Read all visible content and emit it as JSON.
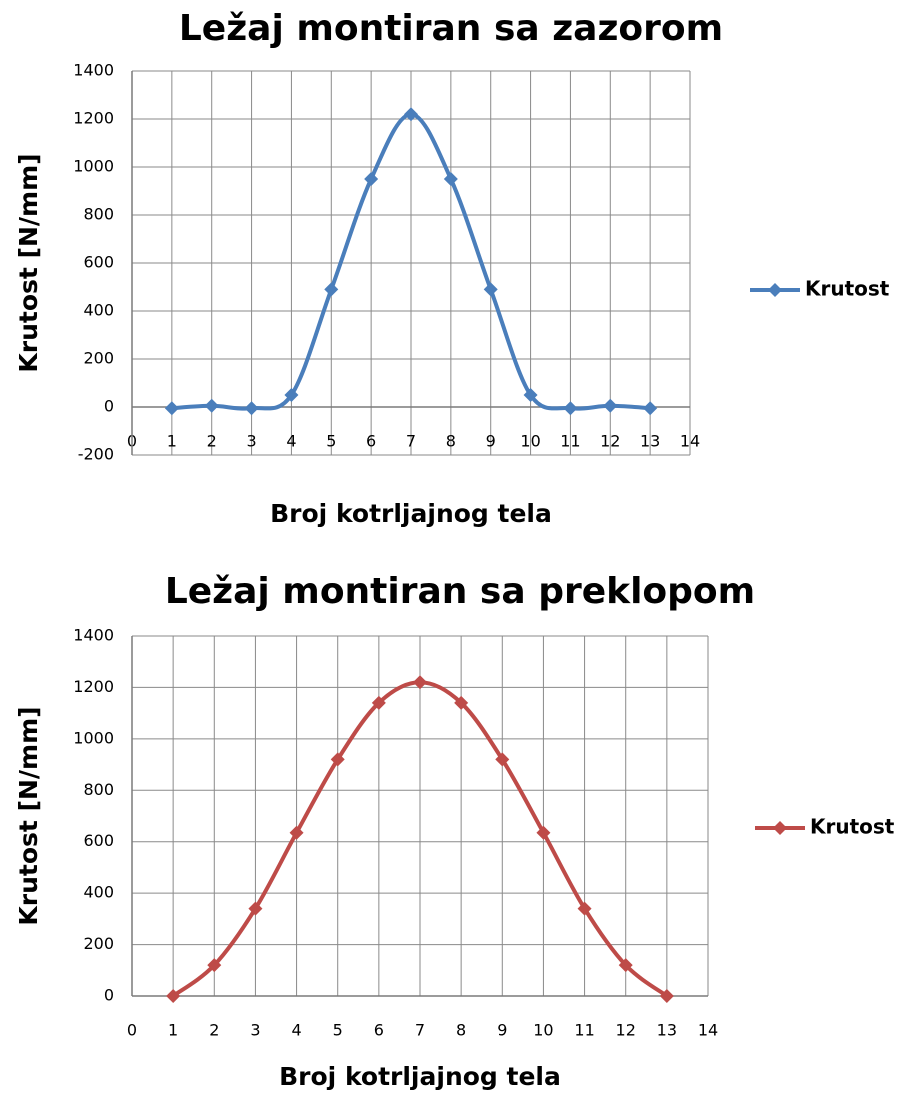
{
  "chart_data": [
    {
      "type": "line",
      "title": "Ležaj montiran sa zazorom",
      "x_label": "Broj kotrljajnog tela",
      "y_label": "Krutost [N/mm]",
      "x": [
        1,
        2,
        3,
        4,
        5,
        6,
        7,
        8,
        9,
        10,
        11,
        12,
        13
      ],
      "series": [
        {
          "name": "Krutost",
          "color": "#4a7ebb",
          "values": [
            -5,
            5,
            -5,
            50,
            490,
            950,
            1220,
            950,
            490,
            50,
            -5,
            5,
            -5
          ]
        }
      ],
      "xlim": [
        0,
        14
      ],
      "xticks": [
        0,
        1,
        2,
        3,
        4,
        5,
        6,
        7,
        8,
        9,
        10,
        11,
        12,
        13,
        14
      ],
      "ylim": [
        -200,
        1400
      ],
      "yticks": [
        -200,
        0,
        200,
        400,
        600,
        800,
        1000,
        1200,
        1400
      ],
      "grid": true,
      "legend": "right",
      "smooth": true,
      "marker": "diamond"
    },
    {
      "type": "line",
      "title": "Ležaj montiran sa preklopom",
      "x_label": "Broj kotrljajnog tela",
      "y_label": "Krutost [N/mm]",
      "x": [
        1,
        2,
        3,
        4,
        5,
        6,
        7,
        8,
        9,
        10,
        11,
        12,
        13
      ],
      "series": [
        {
          "name": "Krutost",
          "color": "#be4b48",
          "values": [
            0,
            120,
            340,
            635,
            920,
            1140,
            1220,
            1140,
            920,
            635,
            340,
            120,
            0
          ]
        }
      ],
      "xlim": [
        0,
        14
      ],
      "xticks": [
        0,
        1,
        2,
        3,
        4,
        5,
        6,
        7,
        8,
        9,
        10,
        11,
        12,
        13,
        14
      ],
      "ylim": [
        0,
        1400
      ],
      "yticks": [
        0,
        200,
        400,
        600,
        800,
        1000,
        1200,
        1400
      ],
      "grid": true,
      "legend": "right",
      "smooth": true,
      "marker": "diamond"
    }
  ]
}
